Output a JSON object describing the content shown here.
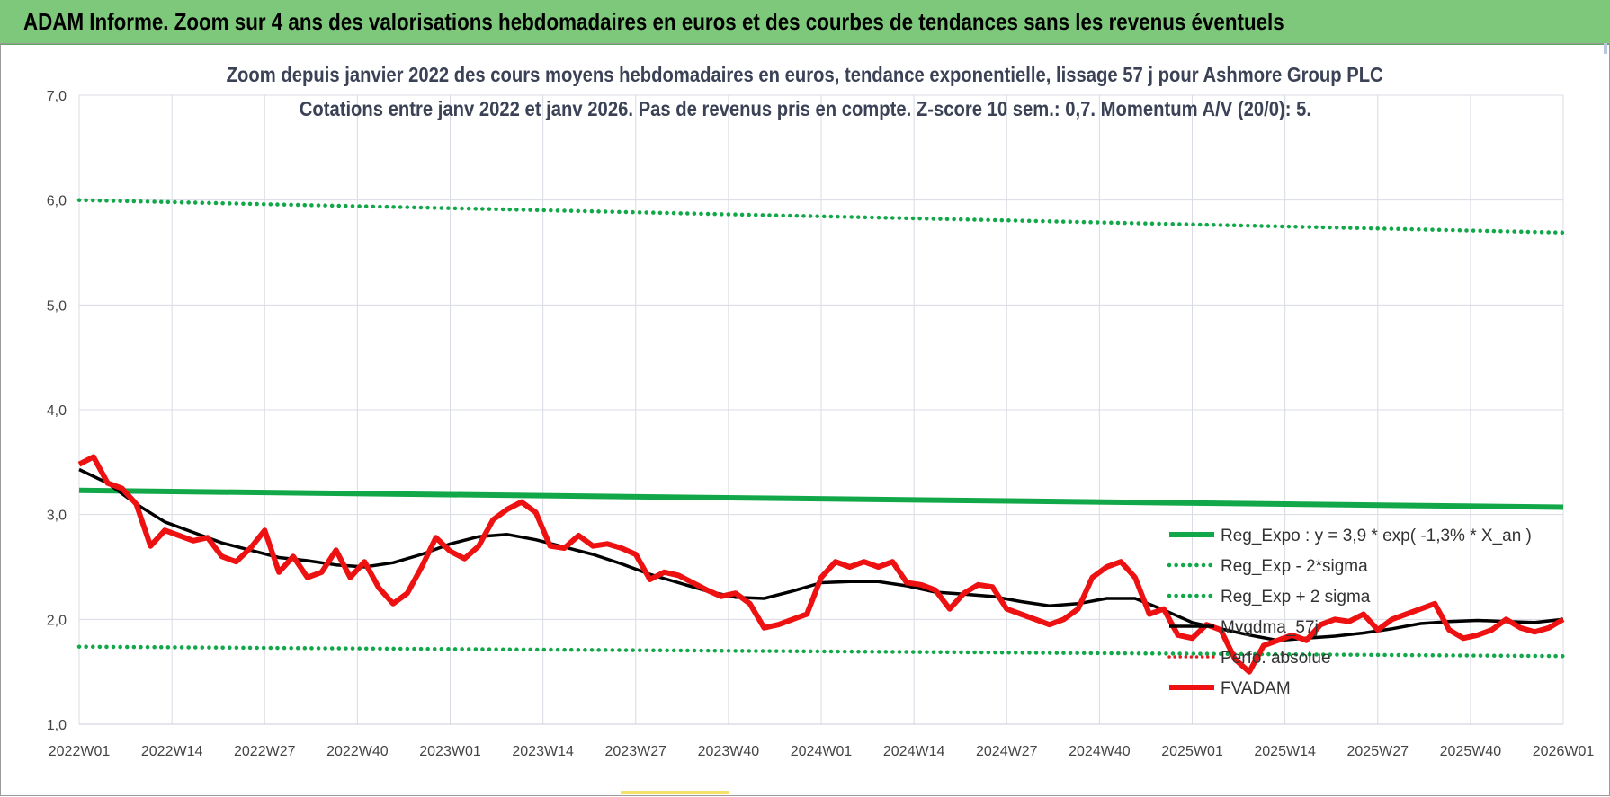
{
  "banner": {
    "title": "ADAM Informe. Zoom sur 4 ans des valorisations hebdomadaires en euros et des courbes de tendances sans les revenus éventuels"
  },
  "chart_data": {
    "type": "line",
    "title_line1": "Zoom depuis janvier 2022 des cours moyens hebdomadaires en euros, tendance exponentielle, lissage 57 j pour Ashmore Group PLC",
    "title_line2": "Cotations entre janv 2022 et janv 2026. Pas de revenus pris en compte. Z-score 10 sem.: 0,7. Momentum A/V (20/0): 5.",
    "ylim": [
      1.0,
      7.0
    ],
    "y_ticks": [
      "1,0",
      "2,0",
      "3,0",
      "4,0",
      "5,0",
      "6,0",
      "7,0"
    ],
    "x_ticks": [
      "2022W01",
      "2022W14",
      "2022W27",
      "2022W40",
      "2023W01",
      "2023W14",
      "2023W27",
      "2023W40",
      "2024W01",
      "2024W14",
      "2024W27",
      "2024W40",
      "2025W01",
      "2025W14",
      "2025W27",
      "2025W40",
      "2026W01"
    ],
    "grid": true,
    "legend_position": "bottom-right",
    "colors": {
      "reg_expo": "#12a84a",
      "sigma": "#12a84a",
      "perf_absolue": "#e02020",
      "mm57": "#000000",
      "fvadam": "#ee1111",
      "grid": "#d9dce4"
    },
    "series": [
      {
        "name": "Reg_Expo : y = 3,9 * exp( -1,3% *  X_an )",
        "style": "solid-green",
        "x": [
          0,
          208
        ],
        "y": [
          3.23,
          3.07
        ]
      },
      {
        "name": "Reg_Exp - 2*sigma",
        "style": "dotted-green",
        "x": [
          0,
          208
        ],
        "y": [
          1.74,
          1.65
        ]
      },
      {
        "name": "Reg_Exp + 2 sigma",
        "style": "dotted-green",
        "x": [
          0,
          208
        ],
        "y": [
          6.0,
          5.69
        ]
      },
      {
        "name": "Mvgdma_57j",
        "style": "solid-black",
        "x": [
          0,
          4,
          8,
          12,
          16,
          20,
          24,
          28,
          32,
          36,
          40,
          44,
          48,
          52,
          56,
          60,
          64,
          68,
          72,
          76,
          80,
          84,
          88,
          92,
          96,
          100,
          104,
          108,
          112,
          116,
          120,
          124,
          128,
          132,
          136,
          140,
          144,
          148,
          152,
          156,
          160,
          164,
          168,
          172,
          176,
          180,
          184,
          188,
          192,
          196,
          200,
          204,
          208
        ],
        "y": [
          3.43,
          3.3,
          3.1,
          2.93,
          2.83,
          2.73,
          2.66,
          2.59,
          2.56,
          2.52,
          2.5,
          2.54,
          2.62,
          2.72,
          2.79,
          2.81,
          2.76,
          2.69,
          2.62,
          2.53,
          2.43,
          2.35,
          2.27,
          2.21,
          2.2,
          2.27,
          2.35,
          2.36,
          2.36,
          2.32,
          2.26,
          2.24,
          2.22,
          2.17,
          2.13,
          2.15,
          2.2,
          2.2,
          2.09,
          1.97,
          1.91,
          1.85,
          1.8,
          1.82,
          1.84,
          1.87,
          1.91,
          1.96,
          1.98,
          1.99,
          1.98,
          1.97,
          2.0
        ]
      },
      {
        "name": "FVADAM",
        "style": "thick-red",
        "x": [
          0,
          2,
          4,
          6,
          8,
          10,
          12,
          14,
          16,
          18,
          20,
          22,
          24,
          26,
          28,
          30,
          32,
          34,
          36,
          38,
          40,
          42,
          44,
          46,
          48,
          50,
          52,
          54,
          56,
          58,
          60,
          62,
          64,
          66,
          68,
          70,
          72,
          74,
          76,
          78,
          80,
          82,
          84,
          86,
          88,
          90,
          92,
          94,
          96,
          98,
          100,
          102,
          104,
          106,
          108,
          110,
          112,
          114,
          116,
          118,
          120,
          122,
          124,
          126,
          128,
          130,
          132,
          134,
          136,
          138,
          140,
          142,
          144,
          146,
          148,
          150,
          152,
          154,
          156,
          158,
          160,
          162,
          164,
          166,
          168,
          170,
          172,
          174,
          176,
          178,
          180,
          182,
          184,
          186,
          188,
          190,
          192,
          194,
          196,
          198,
          200,
          202,
          204,
          206,
          208
        ],
        "y": [
          3.48,
          3.55,
          3.3,
          3.25,
          3.1,
          2.7,
          2.85,
          2.8,
          2.75,
          2.78,
          2.6,
          2.55,
          2.68,
          2.85,
          2.45,
          2.6,
          2.4,
          2.45,
          2.66,
          2.4,
          2.55,
          2.3,
          2.15,
          2.25,
          2.5,
          2.78,
          2.65,
          2.58,
          2.7,
          2.95,
          3.05,
          3.12,
          3.02,
          2.7,
          2.68,
          2.8,
          2.7,
          2.72,
          2.68,
          2.62,
          2.38,
          2.45,
          2.42,
          2.35,
          2.28,
          2.22,
          2.25,
          2.15,
          1.92,
          1.95,
          2.0,
          2.05,
          2.4,
          2.55,
          2.5,
          2.55,
          2.5,
          2.55,
          2.35,
          2.33,
          2.28,
          2.1,
          2.25,
          2.33,
          2.31,
          2.1,
          2.05,
          2.0,
          1.95,
          2.0,
          2.1,
          2.4,
          2.5,
          2.55,
          2.4,
          2.05,
          2.1,
          1.85,
          1.82,
          1.95,
          1.9,
          1.62,
          1.5,
          1.75,
          1.8,
          1.85,
          1.8,
          1.95,
          2.0,
          1.98,
          2.05,
          1.9,
          2.0,
          2.05,
          2.1,
          2.15,
          1.9,
          1.82,
          1.85,
          1.9,
          2.0,
          1.92,
          1.88,
          1.92,
          2.0
        ]
      },
      {
        "name": "Perfo. absolue",
        "style": "dotted-red",
        "x": [],
        "y": []
      }
    ]
  }
}
